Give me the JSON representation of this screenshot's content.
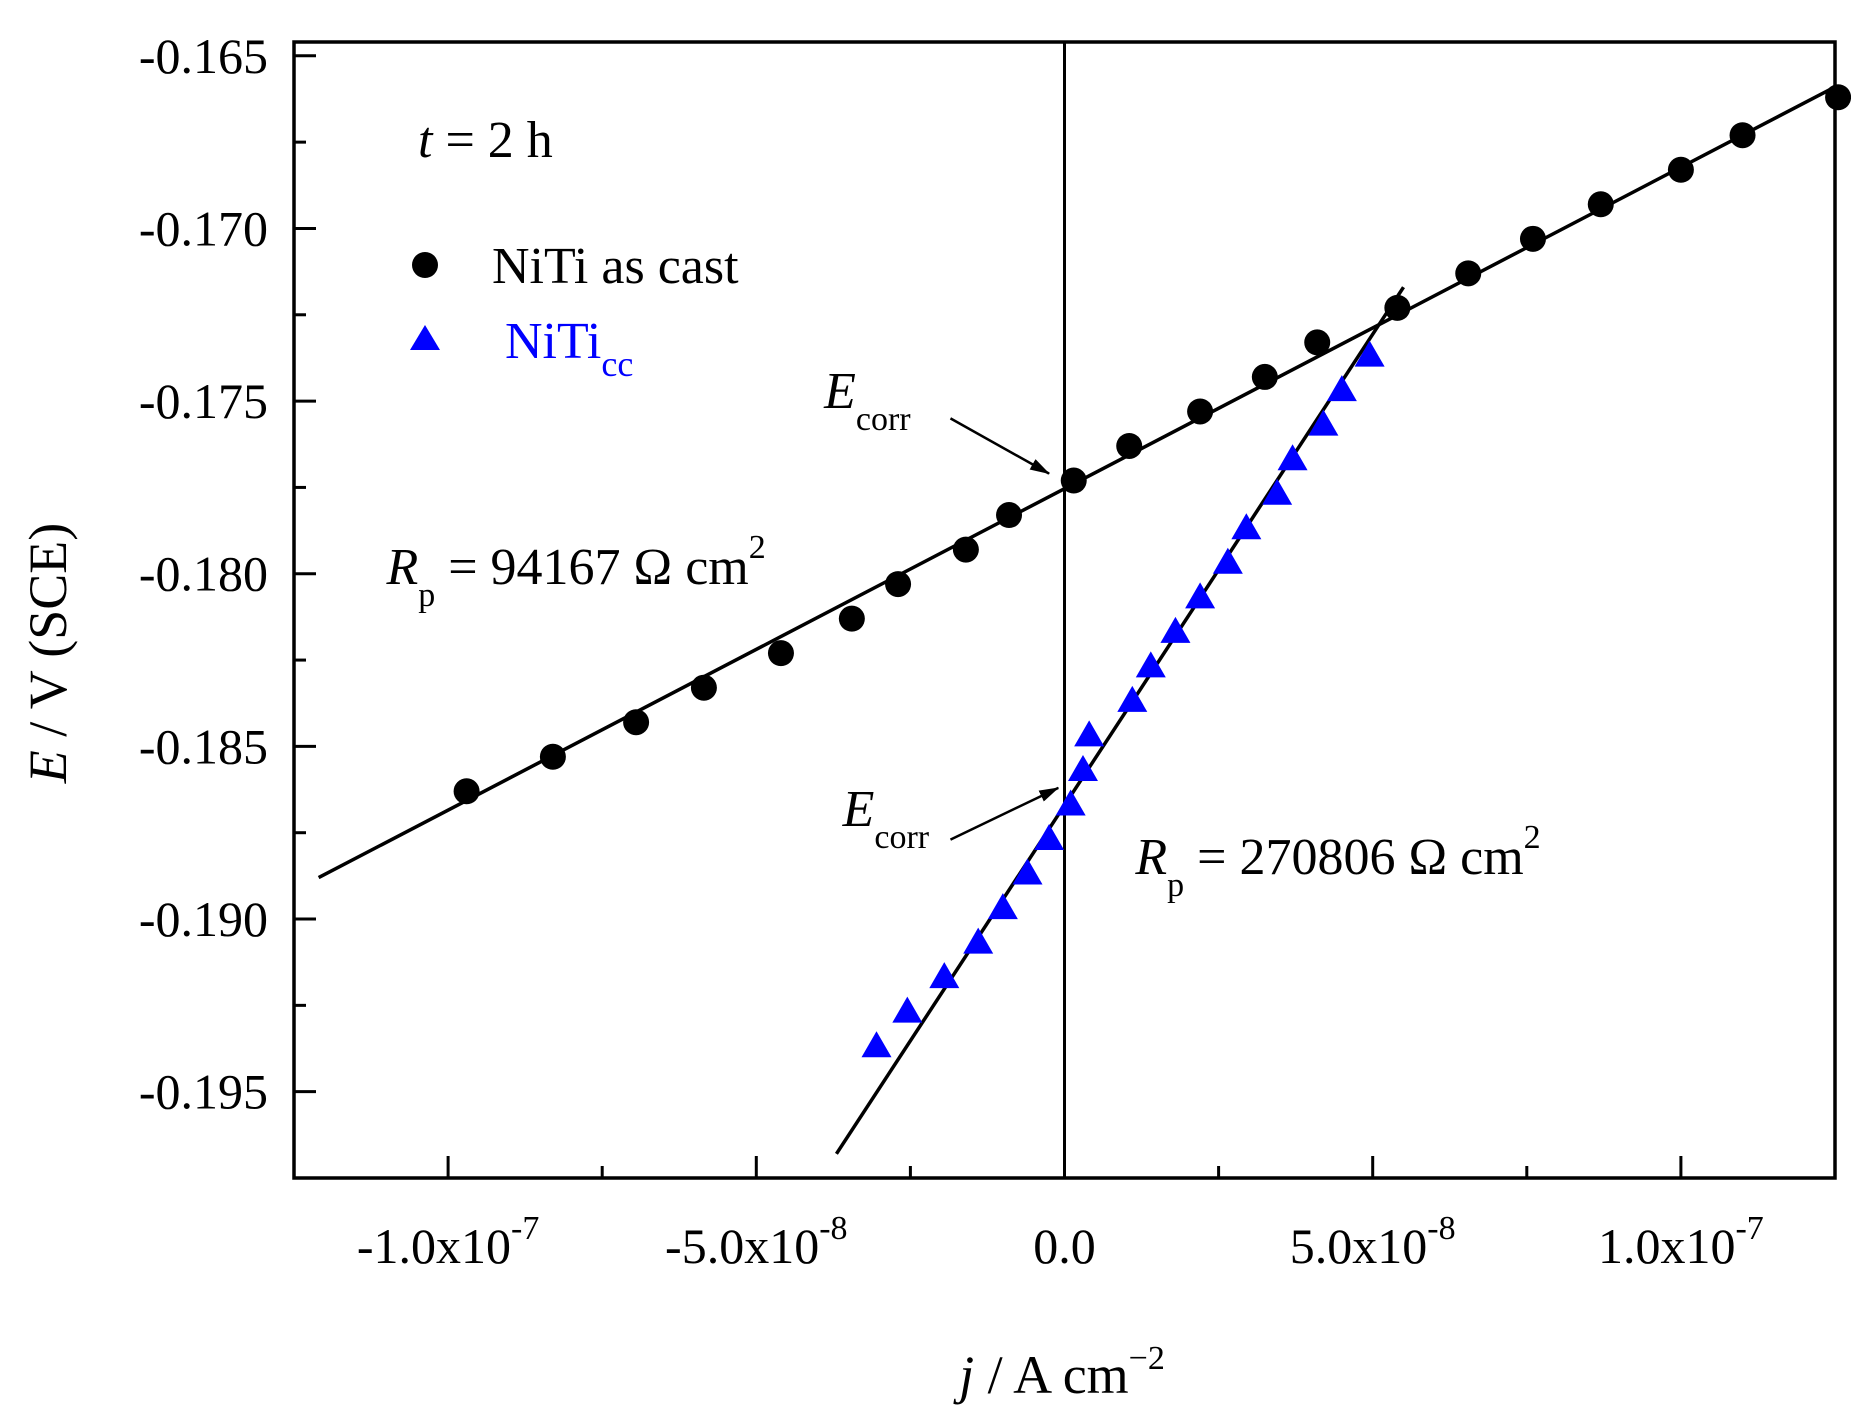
{
  "chart_data": {
    "type": "scatter",
    "xlabel": "j / A cm",
    "xlabel_sup": "−2",
    "ylabel": "E / V (SCE)",
    "xlim": [
      -1.25e-07,
      1.25e-07
    ],
    "ylim": [
      -0.1975,
      -0.1646
    ],
    "x_ticks": [
      {
        "value": -1e-07,
        "mantissa": "-1.0x10",
        "exp": "-7"
      },
      {
        "value": -5e-08,
        "mantissa": "-5.0x10",
        "exp": "-8"
      },
      {
        "value": 0,
        "mantissa": "0.0",
        "exp": ""
      },
      {
        "value": 5e-08,
        "mantissa": "5.0x10",
        "exp": "-8"
      },
      {
        "value": 1e-07,
        "mantissa": "1.0x10",
        "exp": "-7"
      }
    ],
    "x_minor_ticks": [
      -7.5e-08,
      -2.5e-08,
      2.5e-08,
      7.5e-08
    ],
    "y_ticks": [
      {
        "value": -0.165,
        "label": "-0.165"
      },
      {
        "value": -0.17,
        "label": "-0.170"
      },
      {
        "value": -0.175,
        "label": "-0.175"
      },
      {
        "value": -0.18,
        "label": "-0.180"
      },
      {
        "value": -0.185,
        "label": "-0.185"
      },
      {
        "value": -0.19,
        "label": "-0.190"
      },
      {
        "value": -0.195,
        "label": "-0.195"
      }
    ],
    "y_minor_ticks": [
      -0.1675,
      -0.1725,
      -0.1775,
      -0.1825,
      -0.1875,
      -0.1925
    ],
    "vertical_line_x": 0,
    "time_label": {
      "var": "t",
      "text": " = 2 h"
    },
    "legend": [
      {
        "name": "NiTi as cast",
        "sub": "",
        "marker": "circle",
        "color": "#000000"
      },
      {
        "name": "NiTi",
        "sub": "cc",
        "marker": "triangle",
        "color": "#0000ff"
      }
    ],
    "series": [
      {
        "name": "NiTi as cast",
        "marker": "circle",
        "color": "#000000",
        "x": [
          -9.7e-08,
          -8.3e-08,
          -6.95e-08,
          -5.85e-08,
          -4.6e-08,
          -3.45e-08,
          -2.7e-08,
          -1.6e-08,
          -9e-09,
          1.5e-09,
          1.05e-08,
          2.2e-08,
          3.25e-08,
          4.1e-08,
          5.4e-08,
          6.55e-08,
          7.6e-08,
          8.7e-08,
          1e-07,
          1.1e-07,
          1.255e-07
        ],
        "y": [
          -0.1863,
          -0.1853,
          -0.1843,
          -0.1833,
          -0.1823,
          -0.1813,
          -0.1803,
          -0.1793,
          -0.1783,
          -0.1773,
          -0.1763,
          -0.1753,
          -0.1743,
          -0.1733,
          -0.1723,
          -0.1713,
          -0.1703,
          -0.1693,
          -0.1683,
          -0.1673,
          -0.1662
        ]
      },
      {
        "name": "NiTi cc",
        "marker": "triangle",
        "color": "#0000ff",
        "x": [
          -3.05e-08,
          -2.55e-08,
          -1.95e-08,
          -1.4e-08,
          -1e-08,
          -6e-09,
          -2.5e-09,
          1e-09,
          3e-09,
          4e-09,
          1.1e-08,
          1.4e-08,
          1.8e-08,
          2.2e-08,
          2.65e-08,
          2.95e-08,
          3.45e-08,
          3.7e-08,
          4.2e-08,
          4.5e-08,
          4.95e-08
        ],
        "y": [
          -0.1937,
          -0.1927,
          -0.1917,
          -0.1907,
          -0.1897,
          -0.1887,
          -0.1877,
          -0.1867,
          -0.1857,
          -0.1847,
          -0.1837,
          -0.1827,
          -0.1817,
          -0.1807,
          -0.1797,
          -0.1787,
          -0.1777,
          -0.1767,
          -0.1757,
          -0.1747,
          -0.1737
        ]
      }
    ],
    "fit_lines": [
      {
        "name": "NiTi as cast fit",
        "x1": -1.21e-07,
        "y1": -0.1888,
        "x2": 1.25e-07,
        "y2": -0.1659
      },
      {
        "name": "NiTi cc fit",
        "x1": -3.7e-08,
        "y1": -0.1968,
        "x2": 5.5e-08,
        "y2": -0.1717
      }
    ],
    "annotations": [
      {
        "id": "ecorr1",
        "var": "E",
        "sub": "corr",
        "text_x": -3.9e-08,
        "text_y": -0.1752,
        "arrow_from_x": -1.85e-08,
        "arrow_from_y": -0.1755,
        "arrow_to_x": -2.5e-09,
        "arrow_to_y": -0.1771
      },
      {
        "id": "ecorr2",
        "var": "E",
        "sub": "corr",
        "text_x": -3.6e-08,
        "text_y": -0.1873,
        "arrow_from_x": -1.85e-08,
        "arrow_from_y": -0.1877,
        "arrow_to_x": -1e-09,
        "arrow_to_y": -0.1862
      },
      {
        "id": "rp1",
        "var": "R",
        "sub": "p",
        "text": " = 94167 Ω cm",
        "sup": "2",
        "text_x": -1.1e-07,
        "text_y": -0.1803
      },
      {
        "id": "rp2",
        "var": "R",
        "sub": "p",
        "text": " = 270806 Ω cm",
        "sup": "2",
        "text_x": 1.15e-08,
        "text_y": -0.1887
      }
    ]
  }
}
